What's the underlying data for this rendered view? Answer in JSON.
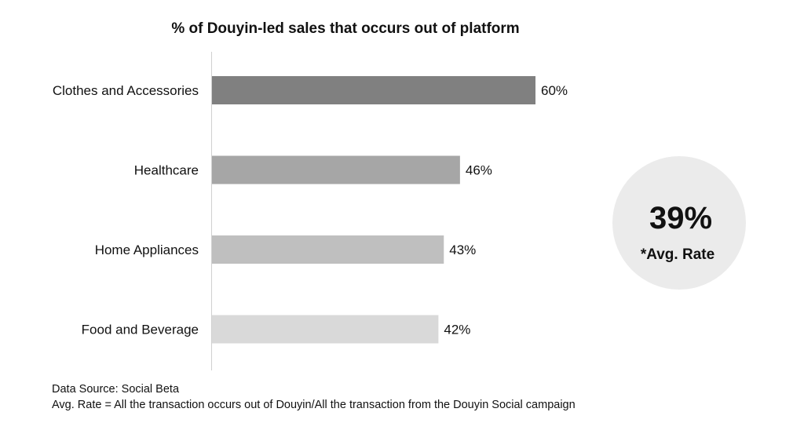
{
  "chart_data": {
    "type": "bar",
    "orientation": "horizontal",
    "title": "% of Douyin-led sales that occurs out of platform",
    "categories": [
      "Clothes and Accessories",
      "Healthcare",
      "Home Appliances",
      "Food and Beverage"
    ],
    "values": [
      60,
      46,
      43,
      42
    ],
    "value_labels": [
      "60%",
      "46%",
      "43%",
      "42%"
    ],
    "bar_colors": [
      "#808080",
      "#a6a6a6",
      "#bfbfbf",
      "#d9d9d9"
    ],
    "xlim": [
      0,
      60
    ],
    "grid": false
  },
  "highlight": {
    "value": "39%",
    "caption": "*Avg. Rate",
    "circle_color": "#ebebeb"
  },
  "footer": {
    "source": "Data Source: Social Beta",
    "note": "Avg. Rate = All the transaction occurs out of Douyin/All the transaction from the Douyin Social campaign"
  }
}
